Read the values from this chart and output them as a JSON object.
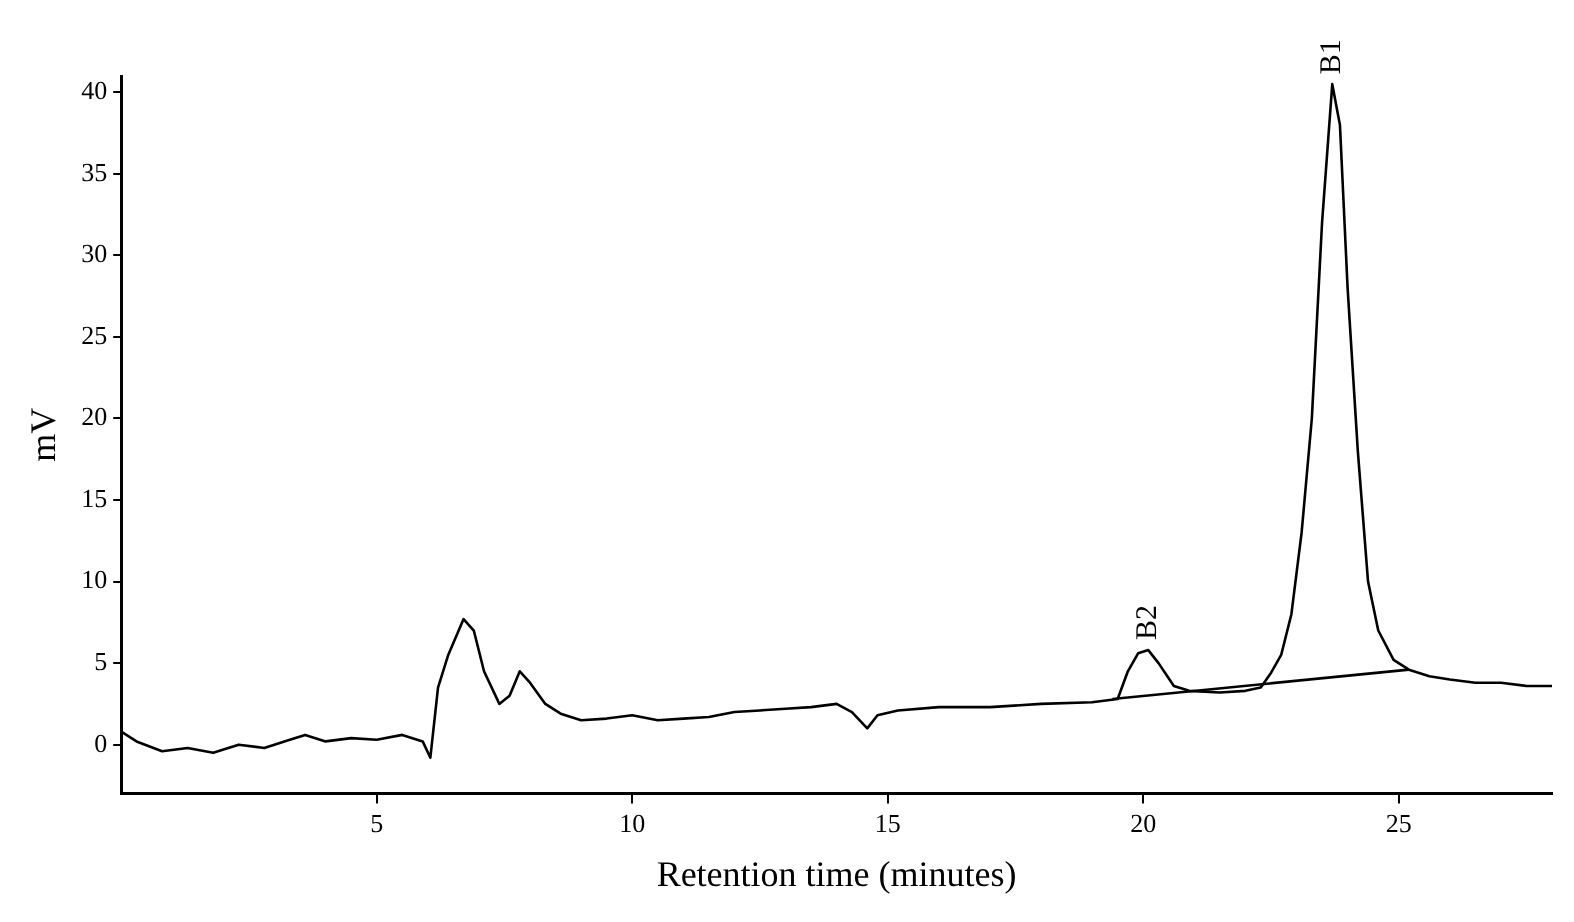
{
  "chart_data": {
    "type": "line",
    "xlabel": "Retention time (minutes)",
    "ylabel": "mV",
    "xlim": [
      0,
      28
    ],
    "xticks": [
      5,
      10,
      15,
      20,
      25
    ],
    "ylim": [
      -3,
      41
    ],
    "yticks": [
      0,
      5,
      10,
      15,
      20,
      25,
      30,
      35,
      40
    ],
    "grid": false,
    "legend": false,
    "marker": "none",
    "line_style": "solid",
    "series": [
      {
        "color": "#000000",
        "x": [
          0,
          0.3,
          0.8,
          1.3,
          1.8,
          2.3,
          2.8,
          3.3,
          3.6,
          4.0,
          4.5,
          5.0,
          5.5,
          5.9,
          6.05,
          6.2,
          6.4,
          6.7,
          6.9,
          7.1,
          7.4,
          7.6,
          7.8,
          8.0,
          8.3,
          8.6,
          9.0,
          9.5,
          10.0,
          10.5,
          11.0,
          11.5,
          12.0,
          12.5,
          13.0,
          13.5,
          14.0,
          14.3,
          14.6,
          14.8,
          15.2,
          16.0,
          17.0,
          18.0,
          19.0,
          19.5,
          19.7,
          19.9,
          20.1,
          20.3,
          20.6,
          20.9,
          21.5,
          22.0,
          22.3,
          22.5,
          22.7,
          22.9,
          23.1,
          23.3,
          23.5,
          23.7,
          23.85,
          24.0,
          24.2,
          24.4,
          24.6,
          24.9,
          25.2,
          25.6,
          26.0,
          26.5,
          27.0,
          27.5,
          28.0
        ],
        "values": [
          0.8,
          0.2,
          -0.4,
          -0.2,
          -0.5,
          0,
          -0.2,
          0.3,
          0.6,
          0.2,
          0.4,
          0.3,
          0.6,
          0.2,
          -0.8,
          3.5,
          5.5,
          7.7,
          7.0,
          4.5,
          2.5,
          3.0,
          4.5,
          3.8,
          2.5,
          1.9,
          1.5,
          1.6,
          1.8,
          1.5,
          1.6,
          1.7,
          2.0,
          2.1,
          2.2,
          2.3,
          2.5,
          2.0,
          1.0,
          1.8,
          2.1,
          2.3,
          2.3,
          2.5,
          2.6,
          2.8,
          4.5,
          5.6,
          5.8,
          5.0,
          3.6,
          3.3,
          3.2,
          3.3,
          3.5,
          4.4,
          5.5,
          8.0,
          13.0,
          20.0,
          32.0,
          40.5,
          38.0,
          28.0,
          18.0,
          10.0,
          7.0,
          5.2,
          4.6,
          4.2,
          4.0,
          3.8,
          3.8,
          3.6,
          3.6
        ]
      },
      {
        "color": "#000000",
        "x": [
          19.4,
          25.2
        ],
        "values": [
          2.8,
          4.6
        ]
      }
    ],
    "annotations": [
      {
        "text": "B2",
        "x": 20.1,
        "y": 5.8
      },
      {
        "text": "B1",
        "x": 23.7,
        "y": 40.5
      }
    ]
  }
}
